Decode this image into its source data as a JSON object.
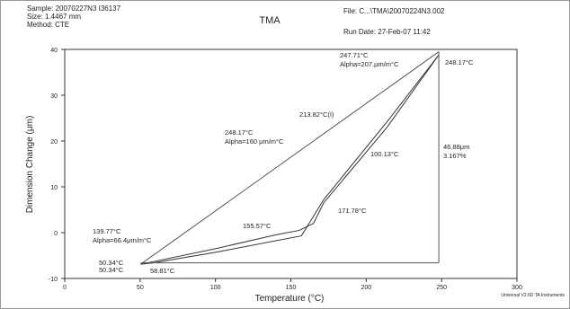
{
  "chart_data": {
    "type": "line",
    "title": "TMA",
    "header_left": [
      "Sample: 20070227N3   I36137",
      "Size: 1.4467 mm",
      "Method: CTE"
    ],
    "header_right": [
      "File: C...\\TMA\\20070224N3.002",
      "Run Date: 27-Feb-07 11:42"
    ],
    "x_label": "Temperature (°C)",
    "y_label": "Dimension Change (μm)",
    "footer": "Universal V2.6D TA Instruments",
    "xlim": [
      0,
      300
    ],
    "xticks": [
      0,
      50,
      100,
      150,
      200,
      250,
      300
    ],
    "ylim": [
      -10,
      40
    ],
    "yticks": [
      -10,
      0,
      10,
      20,
      30,
      40
    ],
    "series": [
      {
        "color": "#333333",
        "x": [
          50.34,
          100,
          139.77,
          155.57,
          165,
          171.78,
          213.82,
          248.17
        ],
        "values": [
          -6.9,
          -3.5,
          -0.5,
          0.5,
          2,
          6.5,
          23,
          38.8
        ]
      },
      {
        "color": "#333333",
        "x": [
          50.34,
          58.81,
          100,
          157,
          171.78,
          213.82,
          248.17
        ],
        "values": [
          -6.9,
          -6.6,
          -4.3,
          -0.7,
          7.2,
          24.2,
          38.8
        ]
      },
      {
        "color": "#555555",
        "x": [
          50.34,
          248.17
        ],
        "values": [
          -6.9,
          39.5
        ]
      },
      {
        "color": "#555555",
        "x": [
          50.34,
          248.17
        ],
        "values": [
          -6.6,
          -6.6
        ]
      },
      {
        "color": "#555555",
        "x": [
          248.17,
          248.17
        ],
        "values": [
          -6.6,
          39.5
        ]
      }
    ],
    "annotations": [
      "247.71°C",
      "Alpha=207.μm/m°C",
      "248.17°C",
      "213.82°C(I)",
      "248.17°C",
      "Alpha=160 μm/m°C",
      "100.13°C",
      "46.88μm",
      "3.167%",
      "171.78°C",
      "155.57°C",
      "139.77°C",
      "Alpha=66.4μm/m°C",
      "50.34°C",
      "50.34°C",
      "58.81°C"
    ]
  }
}
